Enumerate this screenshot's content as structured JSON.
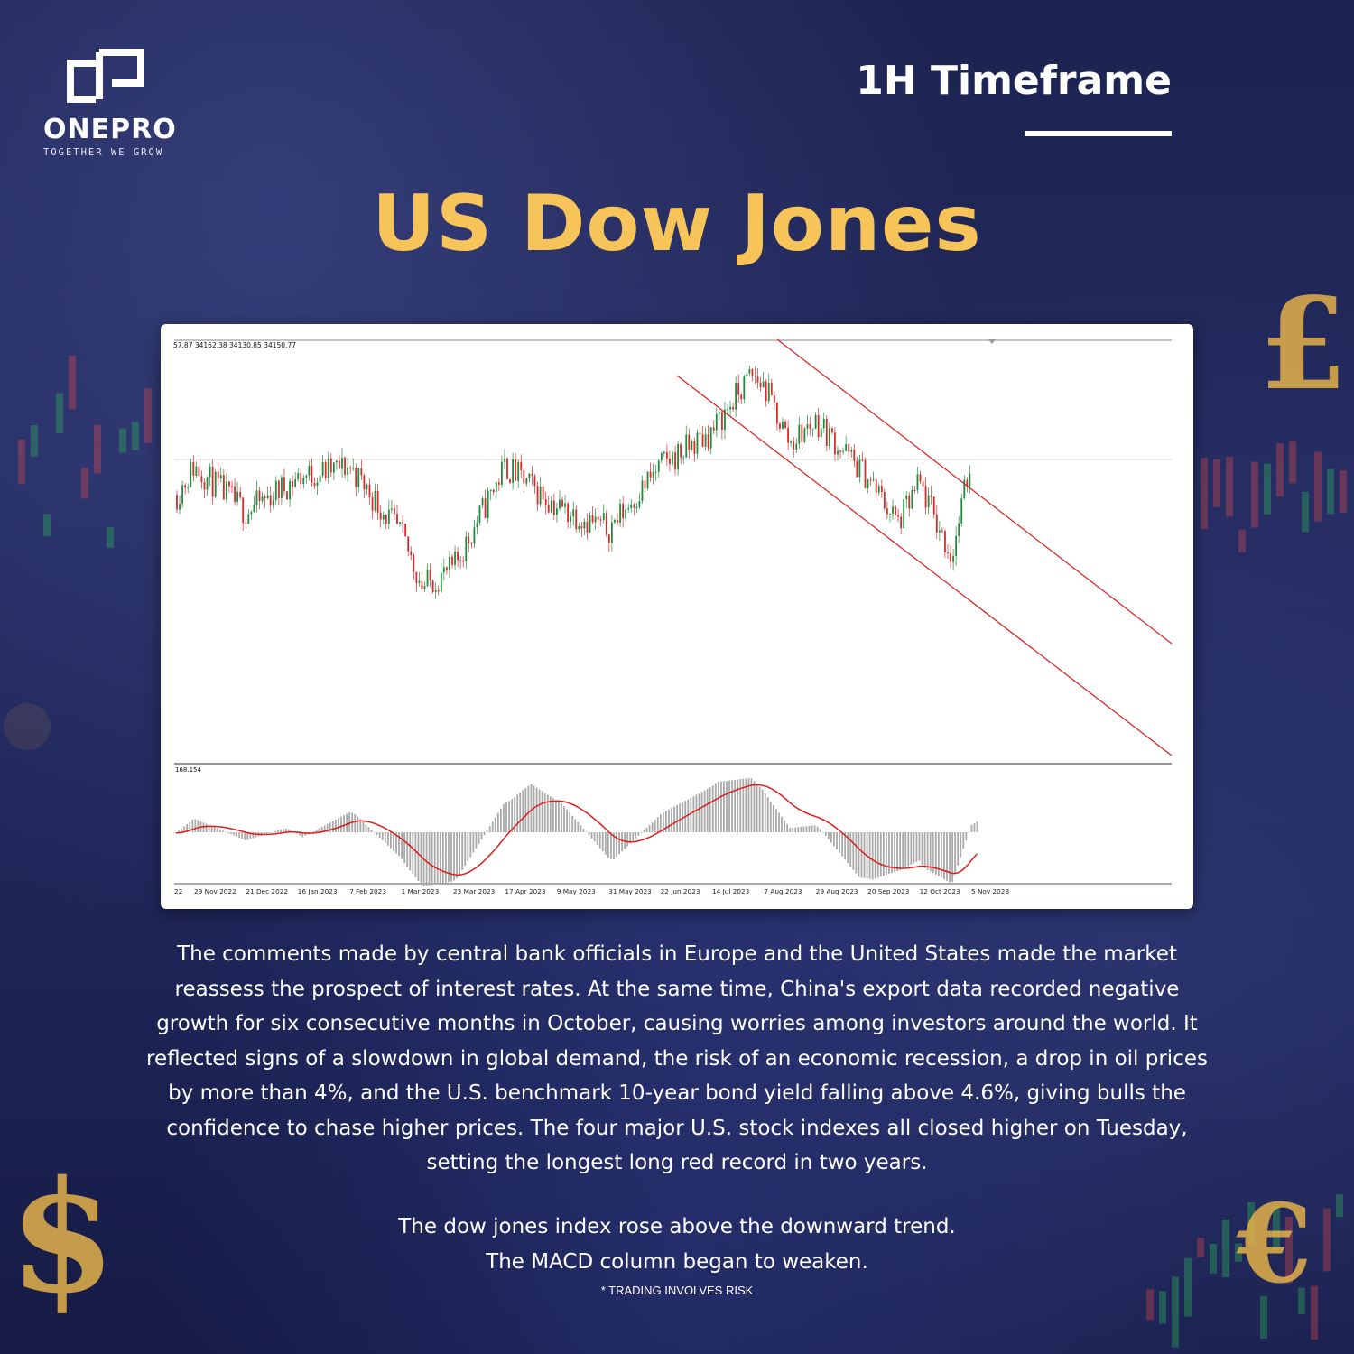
{
  "brand": {
    "name": "ONEPRO",
    "tagline": "TOGETHER WE GROW"
  },
  "timeframe": "1H Timeframe",
  "title": "US Dow Jones",
  "chart": {
    "ohlc_text": "57.87 34162.38 34130.85 34150.77",
    "macd_value": "168.154"
  },
  "chart_data": [
    {
      "type": "candlestick",
      "title": "",
      "x_tick_labels": [
        "22",
        "29 Nov 2022",
        "21 Dec 2022",
        "16 Jan 2023",
        "7 Feb 2023",
        "1 Mar 2023",
        "23 Mar 2023",
        "17 Apr 2023",
        "9 May 2023",
        "31 May 2023",
        "22 Jun 2023",
        "14 Jul 2023",
        "7 Aug 2023",
        "29 Aug 2023",
        "20 Sep 2023",
        "12 Oct 2023",
        "5 Nov 2023"
      ],
      "close_trend_points": [
        {
          "x": "29 Nov 2022",
          "y": 34000
        },
        {
          "x": "21 Dec 2022",
          "y": 33200
        },
        {
          "x": "16 Jan 2023",
          "y": 33800
        },
        {
          "x": "7 Feb 2023",
          "y": 34000
        },
        {
          "x": "1 Mar 2023",
          "y": 32800
        },
        {
          "x": "10 Mar 2023",
          "y": 31900
        },
        {
          "x": "23 Mar 2023",
          "y": 32200
        },
        {
          "x": "17 Apr 2023",
          "y": 34000
        },
        {
          "x": "9 May 2023",
          "y": 33300
        },
        {
          "x": "31 May 2023",
          "y": 32900
        },
        {
          "x": "22 Jun 2023",
          "y": 34000
        },
        {
          "x": "14 Jul 2023",
          "y": 34600
        },
        {
          "x": "1 Aug 2023",
          "y": 35600
        },
        {
          "x": "7 Aug 2023",
          "y": 35400
        },
        {
          "x": "18 Aug 2023",
          "y": 34400
        },
        {
          "x": "29 Aug 2023",
          "y": 34800
        },
        {
          "x": "20 Sep 2023",
          "y": 33800
        },
        {
          "x": "3 Oct 2023",
          "y": 33000
        },
        {
          "x": "12 Oct 2023",
          "y": 33700
        },
        {
          "x": "27 Oct 2023",
          "y": 32400
        },
        {
          "x": "5 Nov 2023",
          "y": 34150
        }
      ],
      "trend_channel": "downward (red parallel lines)"
    },
    {
      "type": "bar",
      "title": "",
      "name": "MACD",
      "latest_value": 168.154,
      "note": "gray histogram with red signal line"
    }
  ],
  "body_text": "The comments made by central bank officials in Europe and the United States made the market reassess the prospect of interest rates. At the same time, China's export data recorded negative growth for six consecutive months in October, causing worries among investors around the world. It reflected signs of a slowdown in global demand, the risk of an economic recession, a drop in oil prices by more than 4%, and the U.S. benchmark 10-year bond yield falling above 4.6%, giving bulls the confidence to chase higher prices. The four major U.S. stock indexes all closed higher on Tuesday, setting the longest long red record in two years.",
  "notes": [
    "The dow jones index rose above the downward trend.",
    "The MACD column began to weaken."
  ],
  "disclaimer": "* TRADING INVOLVES RISK",
  "colors": {
    "accent_title": "#f6c458",
    "background": "#1e2557",
    "candle_up": "#1f8a3c",
    "candle_down": "#d92a2a",
    "trend_line": "#e01b1b"
  }
}
